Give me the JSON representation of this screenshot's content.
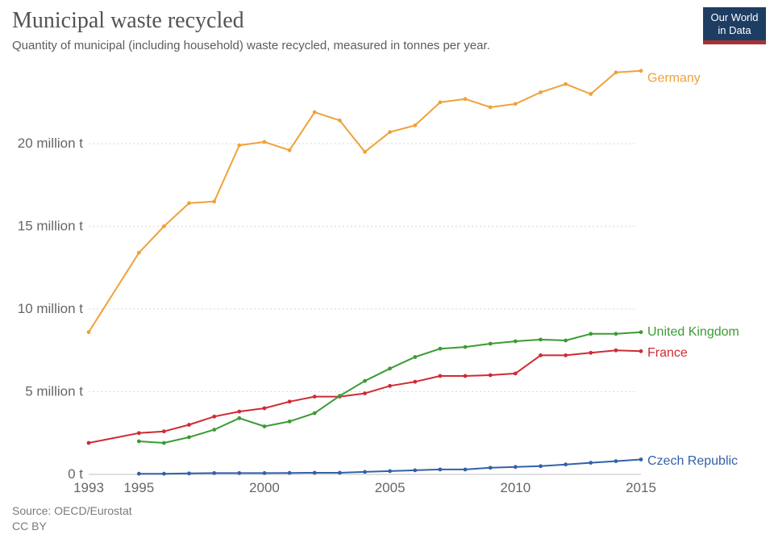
{
  "header": {
    "title": "Municipal waste recycled",
    "subtitle": "Quantity of municipal (including household) waste recycled, measured in tonnes per year.",
    "logo": {
      "line1": "Our World",
      "line2": "in Data",
      "bg_color": "#1d3d63",
      "accent_color": "#a63232"
    }
  },
  "footer": {
    "source": "Source: OECD/Eurostat",
    "license": "CC BY"
  },
  "chart_data": {
    "type": "line",
    "title": "Municipal waste recycled",
    "subtitle": "Quantity of municipal (including household) waste recycled, measured in tonnes per year.",
    "unit": "million tonnes per year",
    "xlabel": "",
    "ylabel": "",
    "grid": true,
    "legend_position": "right-end-of-line-labels",
    "xlim": [
      1993,
      2015
    ],
    "ylim": [
      0,
      25
    ],
    "x_ticks": [
      1993,
      1995,
      2000,
      2005,
      2010,
      2015
    ],
    "y_ticks": [
      0,
      5,
      10,
      15,
      20
    ],
    "y_tick_labels": [
      "0 t",
      "5 million t",
      "10 million t",
      "15 million t",
      "20 million t"
    ],
    "axis_text_color": "#666666",
    "gridline_color": "#d9d9d9",
    "axis_line_color": "#c2c2c2",
    "series": [
      {
        "name": "Germany",
        "color": "#F0A13A",
        "label_offset_y": 8,
        "years": [
          1993,
          1995,
          1996,
          1997,
          1998,
          1999,
          2000,
          2001,
          2002,
          2003,
          2004,
          2005,
          2006,
          2007,
          2008,
          2009,
          2010,
          2011,
          2012,
          2013,
          2014,
          2015
        ],
        "values": [
          8.6,
          13.4,
          15.0,
          16.4,
          16.5,
          19.9,
          20.1,
          19.6,
          21.9,
          21.4,
          19.5,
          20.7,
          21.1,
          22.5,
          22.7,
          22.2,
          22.4,
          23.1,
          23.6,
          23.0,
          24.3,
          24.4
        ]
      },
      {
        "name": "France",
        "color": "#CE2B34",
        "label_offset_y": 1,
        "years": [
          1993,
          1995,
          1996,
          1997,
          1998,
          1999,
          2000,
          2001,
          2002,
          2003,
          2004,
          2005,
          2006,
          2007,
          2008,
          2009,
          2010,
          2011,
          2012,
          2013,
          2014,
          2015
        ],
        "values": [
          1.9,
          2.5,
          2.6,
          3.0,
          3.5,
          3.8,
          4.0,
          4.4,
          4.7,
          4.7,
          4.9,
          5.35,
          5.6,
          5.95,
          5.95,
          6.0,
          6.1,
          7.2,
          7.2,
          7.35,
          7.5,
          7.45
        ]
      },
      {
        "name": "United Kingdom",
        "color": "#3C9B35",
        "label_offset_y": -1,
        "years": [
          1995,
          1996,
          1997,
          1998,
          1999,
          2000,
          2001,
          2002,
          2003,
          2004,
          2005,
          2006,
          2007,
          2008,
          2009,
          2010,
          2011,
          2012,
          2013,
          2014,
          2015
        ],
        "values": [
          2.0,
          1.9,
          2.25,
          2.7,
          3.4,
          2.9,
          3.2,
          3.7,
          4.75,
          5.65,
          6.4,
          7.1,
          7.6,
          7.7,
          7.9,
          8.05,
          8.15,
          8.1,
          8.5,
          8.5,
          8.6
        ]
      },
      {
        "name": "Czech Republic",
        "color": "#3361A9",
        "label_offset_y": 1,
        "years": [
          1995,
          1996,
          1997,
          1998,
          1999,
          2000,
          2001,
          2002,
          2003,
          2004,
          2005,
          2006,
          2007,
          2008,
          2009,
          2010,
          2011,
          2012,
          2013,
          2014,
          2015
        ],
        "values": [
          0.04,
          0.04,
          0.06,
          0.08,
          0.08,
          0.08,
          0.09,
          0.1,
          0.1,
          0.15,
          0.2,
          0.25,
          0.3,
          0.3,
          0.4,
          0.45,
          0.5,
          0.6,
          0.7,
          0.8,
          0.9
        ]
      }
    ]
  }
}
